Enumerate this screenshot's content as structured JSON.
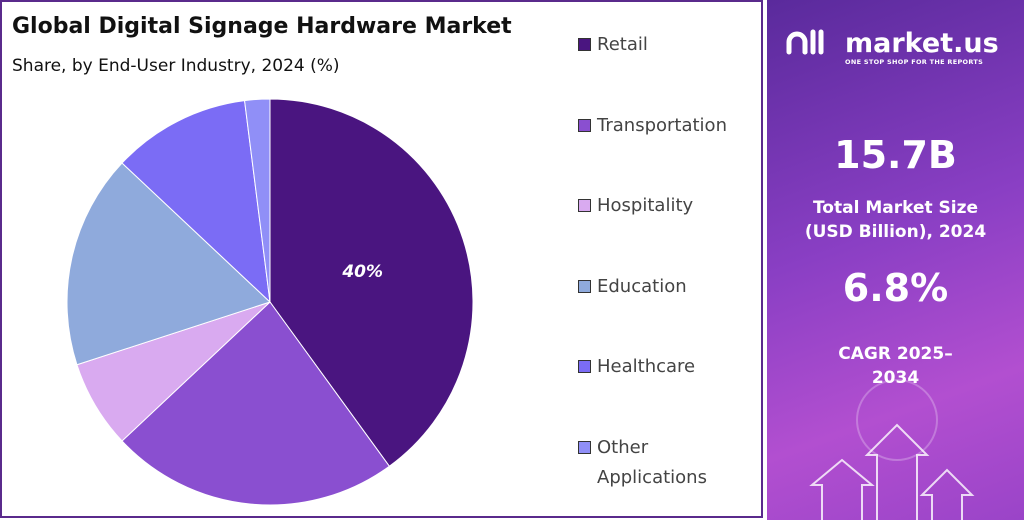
{
  "chart_data": {
    "type": "pie",
    "title": "Global Digital Signage Hardware Market",
    "subtitle": "Share, by End-User Industry, 2024 (%)",
    "categories": [
      "Retail",
      "Transportation",
      "Hospitality",
      "Education",
      "Healthcare",
      "Other Applications"
    ],
    "values": [
      40,
      23,
      7,
      17,
      11,
      2
    ],
    "value_labels": [
      "40%",
      null,
      null,
      null,
      null,
      null
    ],
    "colors": [
      "#4a1580",
      "#8a4fd0",
      "#d9aaf0",
      "#8faadc",
      "#7b6cf5",
      "#908ff7"
    ]
  },
  "side_panel": {
    "brand": "market.us",
    "tagline": "ONE STOP SHOP FOR THE REPORTS",
    "market_size": "15.7B",
    "market_size_label": "Total Market Size (USD Billion), 2024",
    "cagr": "6.8%",
    "cagr_label": "CAGR 2025–2034"
  }
}
